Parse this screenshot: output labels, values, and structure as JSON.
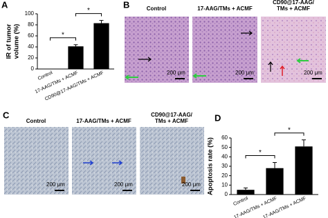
{
  "chart_data": [
    {
      "type": "bar",
      "panel_label": "A",
      "ylabel": [
        "IR of tumor",
        "volume (%)"
      ],
      "categories": [
        "Control",
        "17-AAG/TMs + ACMF",
        "CD90@17-AAG/TMs + ACMF"
      ],
      "values": [
        0,
        41,
        83
      ],
      "errors": [
        0,
        3,
        5
      ],
      "color": "#000000",
      "ylim": [
        0,
        100
      ],
      "yticks": [
        0,
        20,
        40,
        60,
        80,
        100
      ],
      "significance": [
        "*",
        "*"
      ]
    },
    {
      "type": "bar",
      "panel_label": "D",
      "ylabel": [
        "Apoptosis rate (%)"
      ],
      "categories": [
        "Control",
        "17-AAG/TMs + ACMF",
        "17-AAG/TMs + ACMF"
      ],
      "values": [
        5,
        28,
        51
      ],
      "errors": [
        2,
        6,
        7
      ],
      "color": "#000000",
      "ylim": [
        0,
        60
      ],
      "yticks": [
        0,
        10,
        20,
        30,
        40,
        50,
        60
      ],
      "significance": [
        "*",
        "*"
      ]
    }
  ],
  "images": {
    "B": {
      "panel_label": "B",
      "scale_bar": "200 μm",
      "titles": [
        [
          "Control"
        ],
        [
          "17-AAG/TMs + ACMF"
        ],
        [
          "CD90@17-AAG/",
          "TMs + ACMF"
        ]
      ]
    },
    "C": {
      "panel_label": "C",
      "scale_bar": "200 μm",
      "titles": [
        [
          "Control"
        ],
        [
          "17-AAG/TMs + ACMF"
        ],
        [
          "CD90@17-AAG/",
          "TMs + ACMF"
        ]
      ]
    }
  }
}
